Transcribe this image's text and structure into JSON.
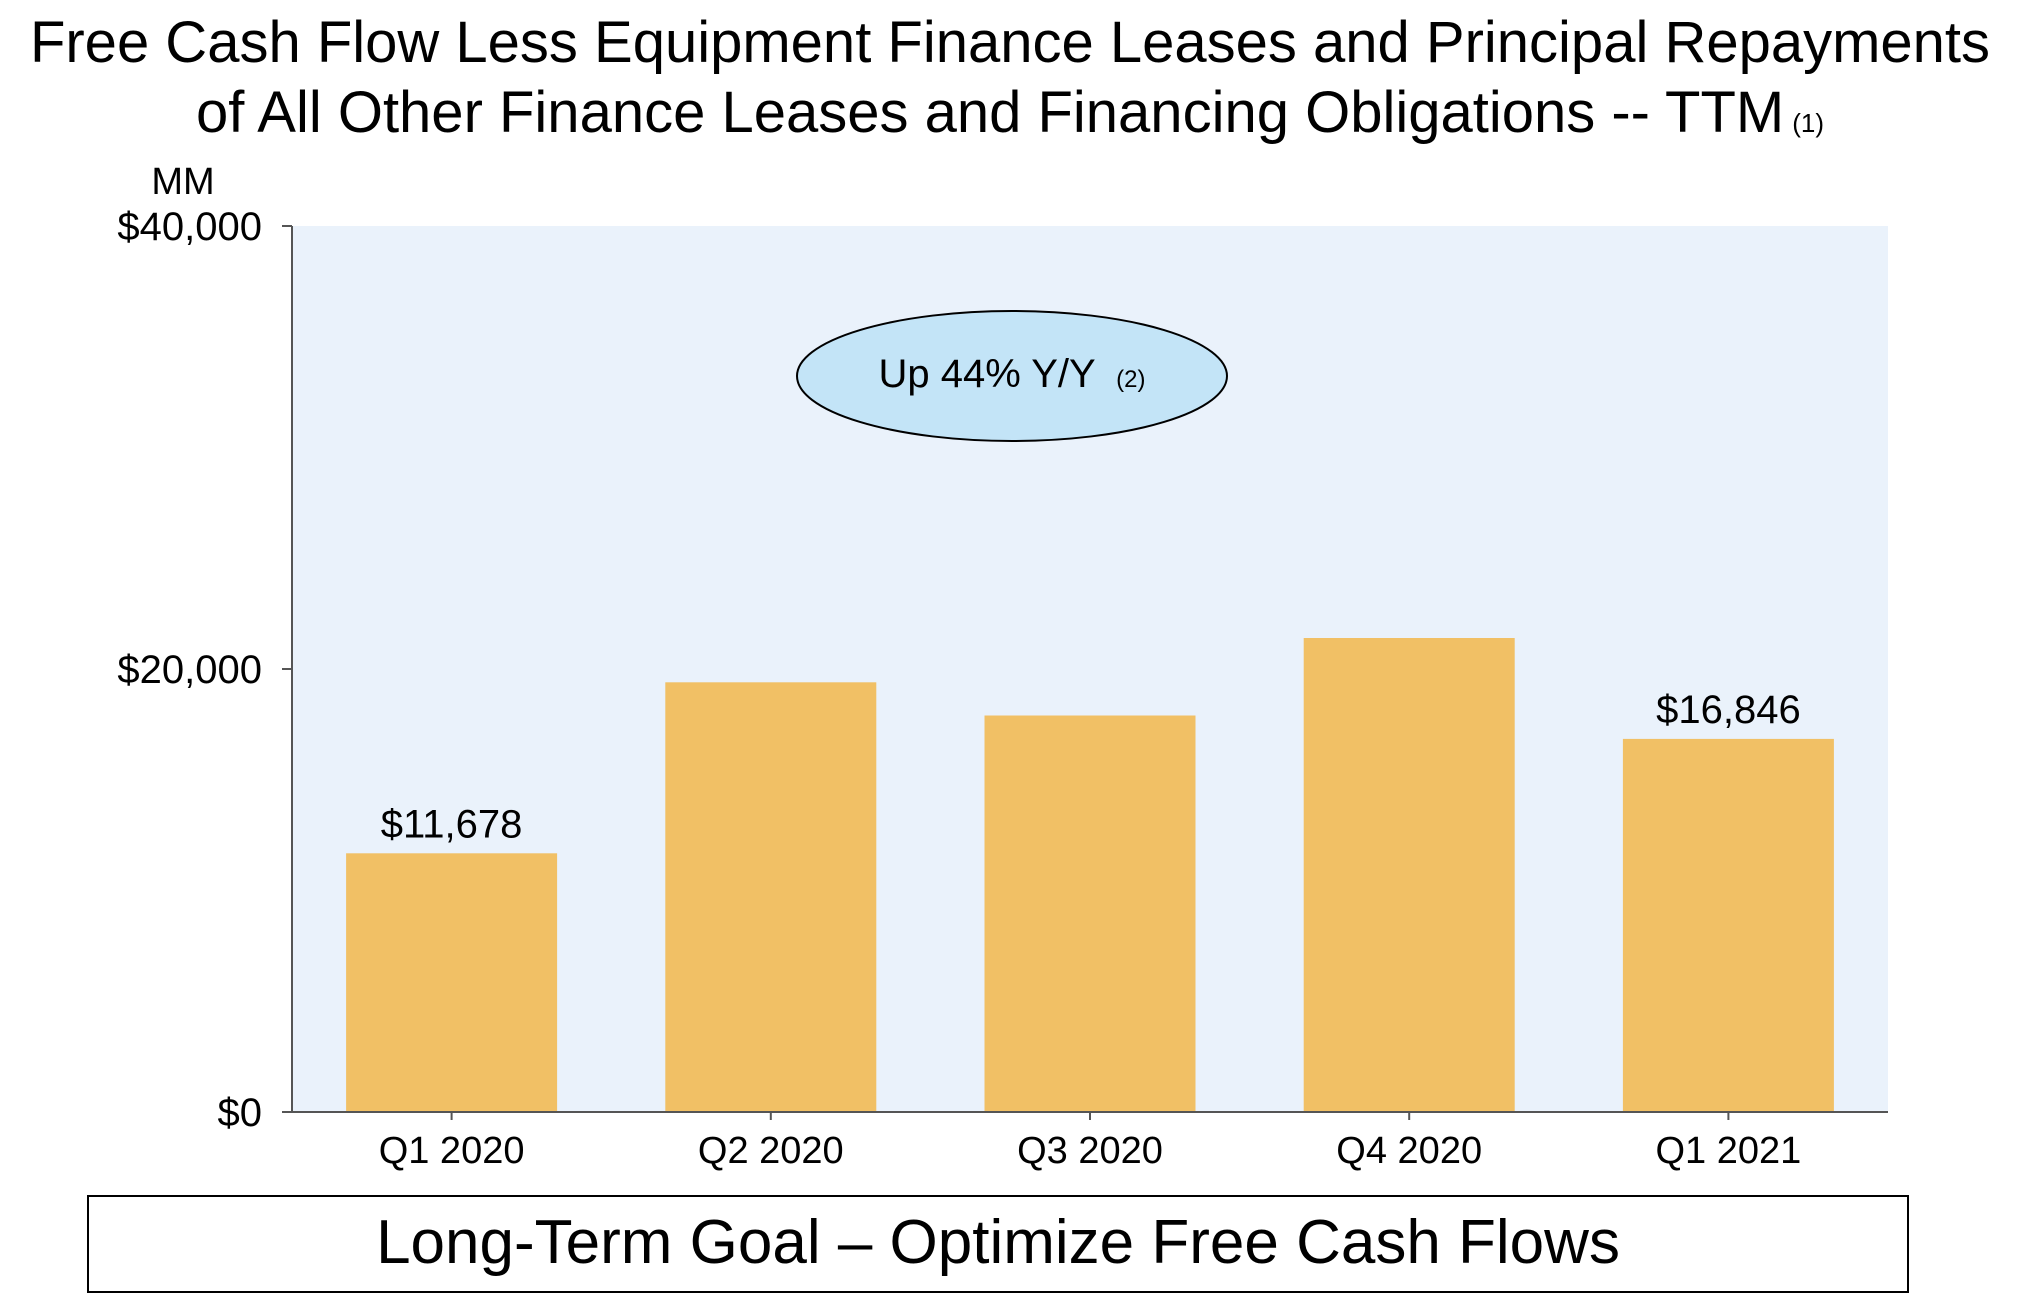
{
  "header": {
    "title_line1": "Free Cash Flow Less Equipment Finance Leases and Principal Repayments",
    "title_line2": "of All Other Finance Leases and Financing Obligations -- TTM",
    "title_note": "(1)"
  },
  "callout": {
    "text": "Up 44% Y/Y",
    "note": "(2)"
  },
  "footer": {
    "goal_text": "Long-Term Goal – Optimize Free Cash Flows"
  },
  "colors": {
    "plot_background": "#EAF2FB",
    "bar": "#F1C065",
    "callout_fill": "#C3E4F7",
    "axis": "#555555"
  },
  "chart_data": {
    "type": "bar",
    "title": "Free Cash Flow Less Equipment Finance Leases and Principal Repayments of All Other Finance Leases and Financing Obligations -- TTM",
    "units_label": "MM",
    "categories": [
      "Q1 2020",
      "Q2 2020",
      "Q3 2020",
      "Q4 2020",
      "Q1 2021"
    ],
    "values": [
      11678,
      19400,
      17900,
      21400,
      16846
    ],
    "data_labels": [
      "$11,678",
      null,
      null,
      null,
      "$16,846"
    ],
    "y_ticks": [
      0,
      20000,
      40000
    ],
    "y_tick_labels": [
      "$0",
      "$20,000",
      "$40,000"
    ],
    "ylim": [
      0,
      40000
    ],
    "xlabel": "",
    "ylabel": "MM",
    "grid": false,
    "legend": "none"
  }
}
